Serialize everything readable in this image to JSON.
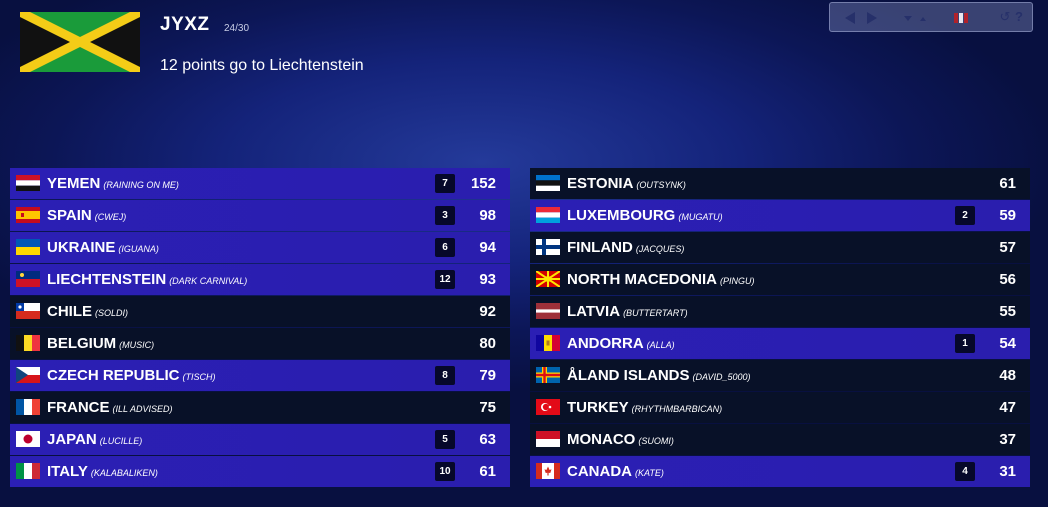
{
  "voter": {
    "name": "JYXZ",
    "progress": "24/30",
    "flag_icon": "jamaica-flag-icon",
    "twelve_points": "12 points go to Liechtenstein"
  },
  "controls": {
    "icons": [
      "prev-icon",
      "next-icon",
      "sort-icon",
      "flag-view-icon",
      "reset-icon",
      "help-icon"
    ]
  },
  "left_column": [
    {
      "country": "YEMEN",
      "entry": "(RAINING ON ME)",
      "points": "7",
      "score": "152",
      "highlight": true,
      "flag": "yemen-flag-icon"
    },
    {
      "country": "SPAIN",
      "entry": "(CWEJ)",
      "points": "3",
      "score": "98",
      "highlight": true,
      "flag": "spain-flag-icon"
    },
    {
      "country": "UKRAINE",
      "entry": "(IGUANA)",
      "points": "6",
      "score": "94",
      "highlight": true,
      "flag": "ukraine-flag-icon"
    },
    {
      "country": "LIECHTENSTEIN",
      "entry": "(DARK CARNIVAL)",
      "points": "12",
      "score": "93",
      "highlight": true,
      "flag": "liechtenstein-flag-icon"
    },
    {
      "country": "CHILE",
      "entry": "(SOLDI)",
      "points": "",
      "score": "92",
      "highlight": false,
      "flag": "chile-flag-icon"
    },
    {
      "country": "BELGIUM",
      "entry": "(MUSIC)",
      "points": "",
      "score": "80",
      "highlight": false,
      "flag": "belgium-flag-icon"
    },
    {
      "country": "CZECH REPUBLIC",
      "entry": "(TISCH)",
      "points": "8",
      "score": "79",
      "highlight": true,
      "flag": "czech-flag-icon"
    },
    {
      "country": "FRANCE",
      "entry": "(ILL ADVISED)",
      "points": "",
      "score": "75",
      "highlight": false,
      "flag": "france-flag-icon"
    },
    {
      "country": "JAPAN",
      "entry": "(LUCILLE)",
      "points": "5",
      "score": "63",
      "highlight": true,
      "flag": "japan-flag-icon"
    },
    {
      "country": "ITALY",
      "entry": "(KALABALIKEN)",
      "points": "10",
      "score": "61",
      "highlight": true,
      "flag": "italy-flag-icon"
    }
  ],
  "right_column": [
    {
      "country": "ESTONIA",
      "entry": "(OUTSYNK)",
      "points": "",
      "score": "61",
      "highlight": false,
      "flag": "estonia-flag-icon"
    },
    {
      "country": "LUXEMBOURG",
      "entry": "(MUGATU)",
      "points": "2",
      "score": "59",
      "highlight": true,
      "flag": "luxembourg-flag-icon"
    },
    {
      "country": "FINLAND",
      "entry": "(JACQUES)",
      "points": "",
      "score": "57",
      "highlight": false,
      "flag": "finland-flag-icon"
    },
    {
      "country": "NORTH MACEDONIA",
      "entry": "(PINGU)",
      "points": "",
      "score": "56",
      "highlight": false,
      "flag": "north-macedonia-flag-icon"
    },
    {
      "country": "LATVIA",
      "entry": "(BUTTERTART)",
      "points": "",
      "score": "55",
      "highlight": false,
      "flag": "latvia-flag-icon"
    },
    {
      "country": "ANDORRA",
      "entry": "(ALLA)",
      "points": "1",
      "score": "54",
      "highlight": true,
      "flag": "andorra-flag-icon"
    },
    {
      "country": "ÅLAND ISLANDS",
      "entry": "(DAVID_5000)",
      "points": "",
      "score": "48",
      "highlight": false,
      "flag": "aland-flag-icon"
    },
    {
      "country": "TURKEY",
      "entry": "(RHYTHMBARBICAN)",
      "points": "",
      "score": "47",
      "highlight": false,
      "flag": "turkey-flag-icon"
    },
    {
      "country": "MONACO",
      "entry": "(SUOMI)",
      "points": "",
      "score": "37",
      "highlight": false,
      "flag": "monaco-flag-icon"
    },
    {
      "country": "CANADA",
      "entry": "(KATE)",
      "points": "4",
      "score": "31",
      "highlight": true,
      "flag": "canada-flag-icon"
    }
  ]
}
